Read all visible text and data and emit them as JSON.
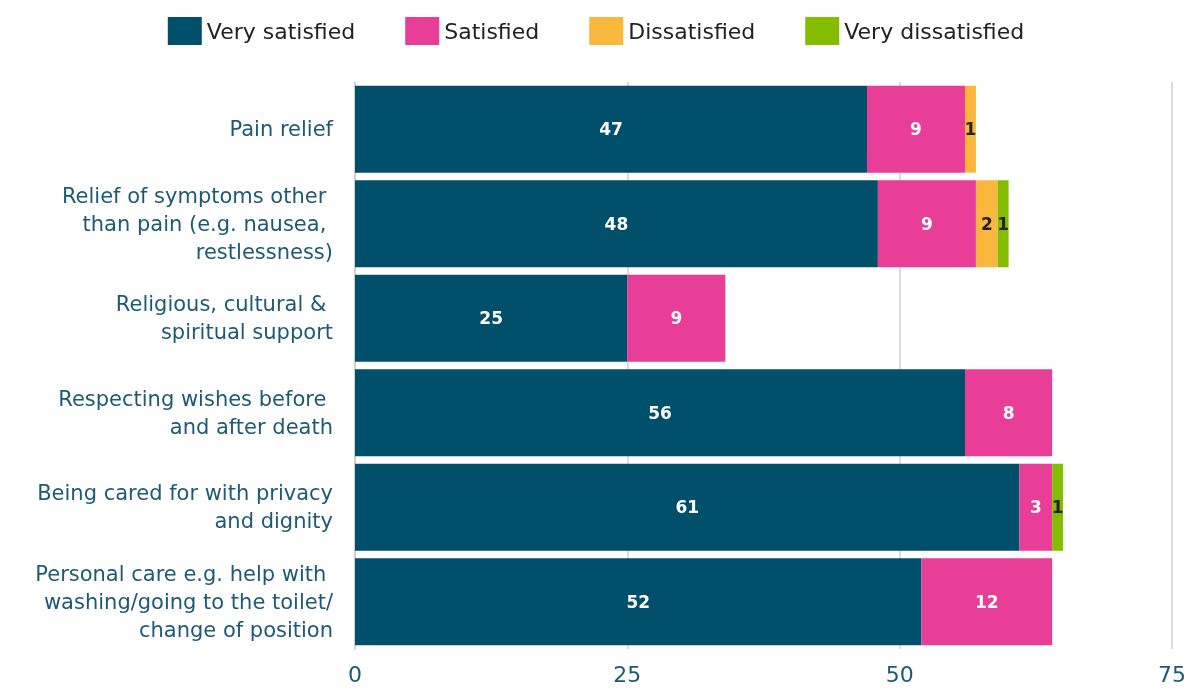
{
  "chart_data": {
    "type": "bar",
    "orientation": "horizontal",
    "stacked": true,
    "categories": [
      "Pain relief",
      "Relief of symptoms other than pain (e.g. nausea, restlessness)",
      "Religious, cultural & spiritual support",
      "Respecting wishes before and after death",
      "Being cared for with privacy and dignity",
      "Personal care e.g. help with washing/going to the toilet/change of position"
    ],
    "series": [
      {
        "name": "Very satisfied",
        "color": "#004f6b",
        "values": [
          47,
          48,
          25,
          56,
          61,
          52
        ]
      },
      {
        "name": "Satisfied",
        "color": "#e83e97",
        "values": [
          9,
          9,
          9,
          8,
          3,
          12
        ]
      },
      {
        "name": "Dissatisfied",
        "color": "#f9b83d",
        "values": [
          1,
          2,
          null,
          null,
          null,
          null
        ]
      },
      {
        "name": "Very dissatisfied",
        "color": "#84bd00",
        "values": [
          null,
          1,
          null,
          null,
          1,
          null
        ]
      }
    ],
    "xlim": [
      0,
      75
    ],
    "xticks": [
      0,
      25,
      50,
      75
    ],
    "grid": "x",
    "legend": "top",
    "data_labels": true
  }
}
